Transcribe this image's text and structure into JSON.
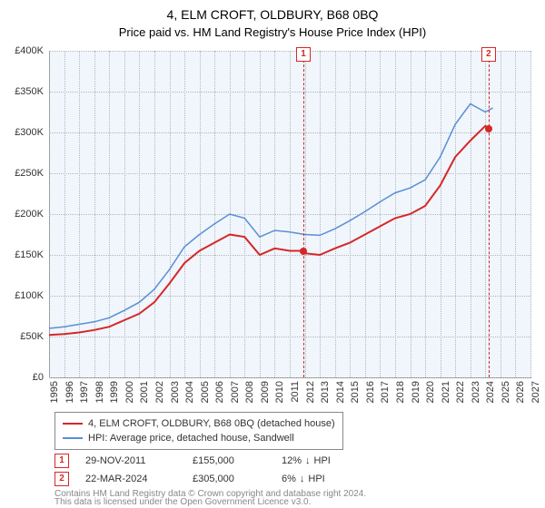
{
  "title": "4, ELM CROFT, OLDBURY, B68 0BQ",
  "subtitle": "Price paid vs. HM Land Registry's House Price Index (HPI)",
  "chart": {
    "type": "line",
    "background_color": "#f0f6fb",
    "grid_color": "#b0b7bf",
    "axis_color": "#888888",
    "ylim": [
      0,
      400000
    ],
    "ytick_step": 50000,
    "ytick_labels": [
      "£0",
      "£50K",
      "£100K",
      "£150K",
      "£200K",
      "£250K",
      "£300K",
      "£350K",
      "£400K"
    ],
    "xlim": [
      1995,
      2027
    ],
    "xtick_step": 1,
    "xtick_labels": [
      "1995",
      "1996",
      "1997",
      "1998",
      "1999",
      "2000",
      "2001",
      "2002",
      "2003",
      "2004",
      "2005",
      "2006",
      "2007",
      "2008",
      "2009",
      "2010",
      "2011",
      "2012",
      "2013",
      "2014",
      "2015",
      "2016",
      "2017",
      "2018",
      "2019",
      "2020",
      "2021",
      "2022",
      "2023",
      "2024",
      "2025",
      "2026",
      "2027"
    ],
    "x_label_rotation": -90,
    "label_fontsize": 11,
    "title_fontsize": 14,
    "series": [
      {
        "name": "4, ELM CROFT, OLDBURY, B68 0BQ (detached house)",
        "color": "#d62728",
        "line_width": 2,
        "data": [
          [
            1995,
            52000
          ],
          [
            1996,
            53000
          ],
          [
            1997,
            55000
          ],
          [
            1998,
            58000
          ],
          [
            1999,
            62000
          ],
          [
            2000,
            70000
          ],
          [
            2001,
            78000
          ],
          [
            2002,
            92000
          ],
          [
            2003,
            115000
          ],
          [
            2004,
            140000
          ],
          [
            2005,
            155000
          ],
          [
            2006,
            165000
          ],
          [
            2007,
            175000
          ],
          [
            2008,
            172000
          ],
          [
            2009,
            150000
          ],
          [
            2010,
            158000
          ],
          [
            2011,
            155000
          ],
          [
            2011.9,
            155000
          ],
          [
            2012,
            152000
          ],
          [
            2013,
            150000
          ],
          [
            2014,
            158000
          ],
          [
            2015,
            165000
          ],
          [
            2016,
            175000
          ],
          [
            2017,
            185000
          ],
          [
            2018,
            195000
          ],
          [
            2019,
            200000
          ],
          [
            2020,
            210000
          ],
          [
            2021,
            235000
          ],
          [
            2022,
            270000
          ],
          [
            2023,
            290000
          ],
          [
            2024,
            308000
          ],
          [
            2024.22,
            305000
          ]
        ]
      },
      {
        "name": "HPI: Average price, detached house, Sandwell",
        "color": "#5a8fd6",
        "line_width": 1.5,
        "data": [
          [
            1995,
            60000
          ],
          [
            1996,
            62000
          ],
          [
            1997,
            65000
          ],
          [
            1998,
            68000
          ],
          [
            1999,
            73000
          ],
          [
            2000,
            82000
          ],
          [
            2001,
            92000
          ],
          [
            2002,
            108000
          ],
          [
            2003,
            132000
          ],
          [
            2004,
            160000
          ],
          [
            2005,
            175000
          ],
          [
            2006,
            188000
          ],
          [
            2007,
            200000
          ],
          [
            2008,
            195000
          ],
          [
            2009,
            172000
          ],
          [
            2010,
            180000
          ],
          [
            2011,
            178000
          ],
          [
            2012,
            175000
          ],
          [
            2013,
            174000
          ],
          [
            2014,
            182000
          ],
          [
            2015,
            192000
          ],
          [
            2016,
            203000
          ],
          [
            2017,
            215000
          ],
          [
            2018,
            226000
          ],
          [
            2019,
            232000
          ],
          [
            2020,
            242000
          ],
          [
            2021,
            270000
          ],
          [
            2022,
            310000
          ],
          [
            2023,
            335000
          ],
          [
            2024,
            325000
          ],
          [
            2024.5,
            330000
          ]
        ]
      }
    ],
    "events": [
      {
        "n": "1",
        "x": 2011.91,
        "date": "29-NOV-2011",
        "price": "£155,000",
        "delta": "12%",
        "delta_dir": "down",
        "hpi_label": "HPI",
        "point_y": 155000
      },
      {
        "n": "2",
        "x": 2024.22,
        "date": "22-MAR-2024",
        "price": "£305,000",
        "delta": "6%",
        "delta_dir": "down",
        "hpi_label": "HPI",
        "point_y": 305000
      }
    ]
  },
  "legend": {
    "items": [
      {
        "color": "#d62728",
        "label": "4, ELM CROFT, OLDBURY, B68 0BQ (detached house)"
      },
      {
        "color": "#5a8fd6",
        "label": "HPI: Average price, detached house, Sandwell"
      }
    ]
  },
  "footer": {
    "line1": "Contains HM Land Registry data © Crown copyright and database right 2024.",
    "line2": "This data is licensed under the Open Government Licence v3.0."
  },
  "colors": {
    "event_marker": "#d62728",
    "text": "#333333",
    "footer": "#888888"
  }
}
